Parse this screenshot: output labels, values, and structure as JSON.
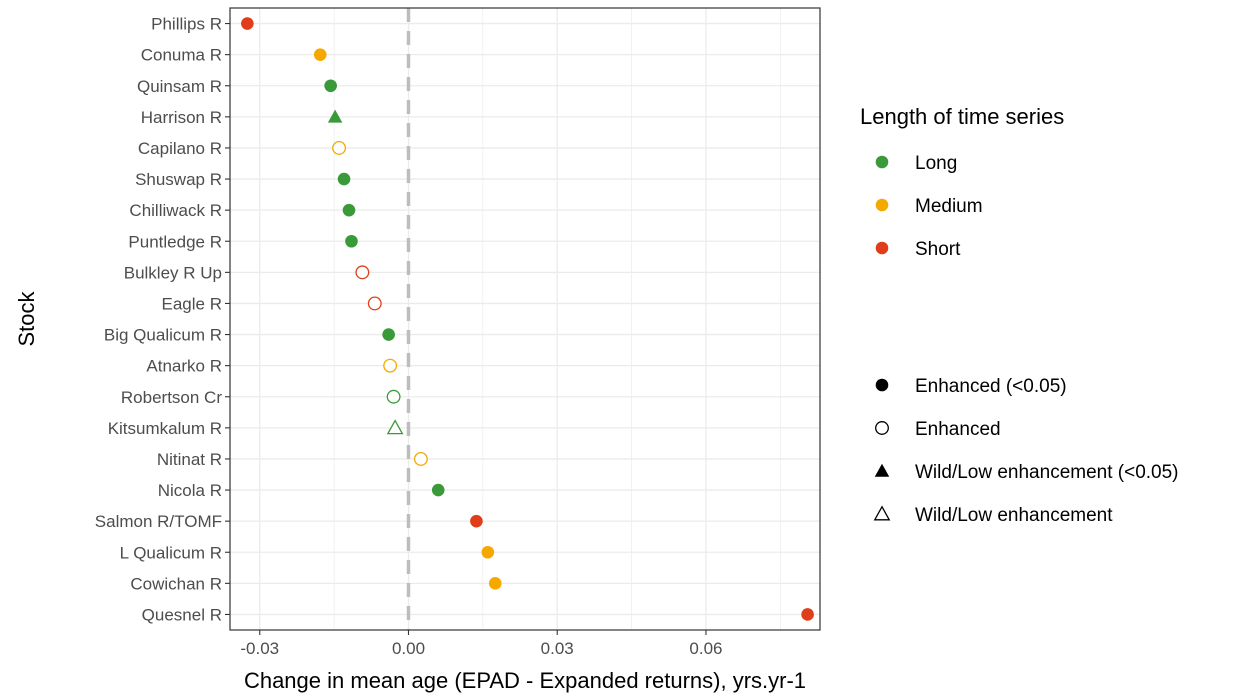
{
  "chart_data": {
    "type": "scatter",
    "title": "",
    "xlabel": "Change in mean age (EPAD - Expanded returns), yrs.yr-1",
    "ylabel": "Stock",
    "xlim": [
      -0.036,
      0.083
    ],
    "x_ticks": [
      -0.03,
      0.0,
      0.03,
      0.06
    ],
    "x_tick_labels": [
      "-0.03",
      "0.00",
      "0.03",
      "0.06"
    ],
    "reference_line_x": 0,
    "grid": true,
    "categories": [
      "Phillips R",
      "Conuma R",
      "Quinsam R",
      "Harrison R",
      "Capilano R",
      "Shuswap R",
      "Chilliwack R",
      "Puntledge R",
      "Bulkley R Up",
      "Eagle R",
      "Big Qualicum R",
      "Atnarko R",
      "Robertson Cr",
      "Kitsumkalum R",
      "Nitinat R",
      "Nicola R",
      "Salmon R/TOMF",
      "L Qualicum R",
      "Cowichan R",
      "Quesnel R"
    ],
    "points": [
      {
        "stock": "Phillips R",
        "x": -0.0325,
        "length": "Short",
        "type": "Enhanced (<0.05)"
      },
      {
        "stock": "Conuma R",
        "x": -0.0178,
        "length": "Medium",
        "type": "Enhanced (<0.05)"
      },
      {
        "stock": "Quinsam R",
        "x": -0.0157,
        "length": "Long",
        "type": "Enhanced (<0.05)"
      },
      {
        "stock": "Harrison R",
        "x": -0.0148,
        "length": "Long",
        "type": "Wild/Low enhancement (<0.05)"
      },
      {
        "stock": "Capilano R",
        "x": -0.014,
        "length": "Medium",
        "type": "Enhanced"
      },
      {
        "stock": "Shuswap R",
        "x": -0.013,
        "length": "Long",
        "type": "Enhanced (<0.05)"
      },
      {
        "stock": "Chilliwack R",
        "x": -0.012,
        "length": "Long",
        "type": "Enhanced (<0.05)"
      },
      {
        "stock": "Puntledge R",
        "x": -0.0115,
        "length": "Long",
        "type": "Enhanced (<0.05)"
      },
      {
        "stock": "Bulkley R Up",
        "x": -0.0093,
        "length": "Short",
        "type": "Enhanced"
      },
      {
        "stock": "Eagle R",
        "x": -0.0068,
        "length": "Short",
        "type": "Enhanced"
      },
      {
        "stock": "Big Qualicum R",
        "x": -0.004,
        "length": "Long",
        "type": "Enhanced (<0.05)"
      },
      {
        "stock": "Atnarko R",
        "x": -0.0037,
        "length": "Medium",
        "type": "Enhanced"
      },
      {
        "stock": "Robertson Cr",
        "x": -0.003,
        "length": "Long",
        "type": "Enhanced"
      },
      {
        "stock": "Kitsumkalum R",
        "x": -0.0027,
        "length": "Long",
        "type": "Wild/Low enhancement"
      },
      {
        "stock": "Nitinat R",
        "x": 0.0025,
        "length": "Medium",
        "type": "Enhanced"
      },
      {
        "stock": "Nicola R",
        "x": 0.006,
        "length": "Long",
        "type": "Enhanced (<0.05)"
      },
      {
        "stock": "Salmon R/TOMF",
        "x": 0.0137,
        "length": "Short",
        "type": "Enhanced (<0.05)"
      },
      {
        "stock": "L Qualicum R",
        "x": 0.016,
        "length": "Medium",
        "type": "Enhanced (<0.05)"
      },
      {
        "stock": "Cowichan R",
        "x": 0.0175,
        "length": "Medium",
        "type": "Enhanced (<0.05)"
      },
      {
        "stock": "Quesnel R",
        "x": 0.0805,
        "length": "Short",
        "type": "Enhanced (<0.05)"
      }
    ],
    "legend_color": {
      "title": "Length of time series",
      "items": [
        {
          "label": "Long",
          "color": "#3a9a3a"
        },
        {
          "label": "Medium",
          "color": "#f5a800"
        },
        {
          "label": "Short",
          "color": "#e03e1a"
        }
      ]
    },
    "legend_shape": {
      "items": [
        {
          "label": "Enhanced (<0.05)",
          "shape": "circle",
          "filled": true
        },
        {
          "label": "Enhanced",
          "shape": "circle",
          "filled": false
        },
        {
          "label": "Wild/Low enhancement (<0.05)",
          "shape": "triangle",
          "filled": true
        },
        {
          "label": "Wild/Low enhancement",
          "shape": "triangle",
          "filled": false
        }
      ]
    },
    "legend_placement": "right"
  }
}
